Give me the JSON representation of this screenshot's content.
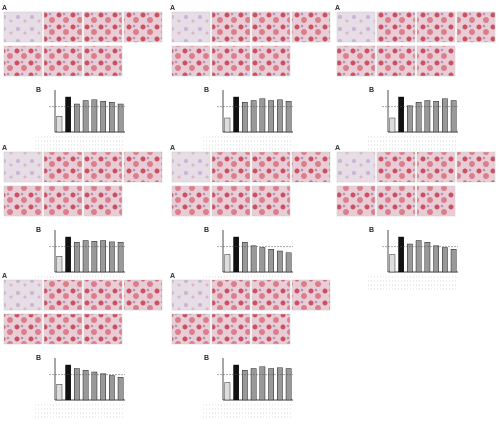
{
  "panels": [
    {
      "label": "A",
      "chart_label": "B",
      "chart": {
        "ylim": [
          0,
          1.2
        ],
        "values": [
          0.45,
          1.0,
          0.8,
          0.9,
          0.92,
          0.88,
          0.85,
          0.8
        ],
        "colors": [
          "#ddd",
          "#111",
          "#999",
          "#999",
          "#999",
          "#999",
          "#999",
          "#999"
        ]
      }
    },
    {
      "label": "A",
      "chart_label": "B",
      "chart": {
        "ylim": [
          0,
          1.2
        ],
        "values": [
          0.4,
          1.0,
          0.85,
          0.9,
          0.95,
          0.9,
          0.92,
          0.88
        ],
        "colors": [
          "#ddd",
          "#111",
          "#999",
          "#999",
          "#999",
          "#999",
          "#999",
          "#999"
        ]
      }
    },
    {
      "label": "A",
      "chart_label": "B",
      "chart": {
        "ylim": [
          0,
          1.2
        ],
        "values": [
          0.4,
          1.0,
          0.75,
          0.85,
          0.9,
          0.88,
          0.95,
          0.9
        ],
        "colors": [
          "#ddd",
          "#111",
          "#999",
          "#999",
          "#999",
          "#999",
          "#999",
          "#999"
        ]
      }
    },
    {
      "label": "A",
      "chart_label": "B",
      "chart": {
        "ylim": [
          0,
          1.2
        ],
        "values": [
          0.45,
          1.0,
          0.85,
          0.9,
          0.88,
          0.9,
          0.86,
          0.85
        ],
        "colors": [
          "#ddd",
          "#111",
          "#999",
          "#999",
          "#999",
          "#999",
          "#999",
          "#999"
        ]
      }
    },
    {
      "label": "A",
      "chart_label": "B",
      "chart": {
        "ylim": [
          0,
          1.2
        ],
        "values": [
          0.5,
          1.0,
          0.85,
          0.75,
          0.7,
          0.65,
          0.6,
          0.55
        ],
        "colors": [
          "#ddd",
          "#111",
          "#999",
          "#999",
          "#999",
          "#999",
          "#999",
          "#999"
        ]
      }
    },
    {
      "label": "A",
      "chart_label": "B",
      "chart": {
        "ylim": [
          0,
          1.2
        ],
        "values": [
          0.5,
          1.0,
          0.8,
          0.9,
          0.85,
          0.75,
          0.7,
          0.65
        ],
        "colors": [
          "#ddd",
          "#111",
          "#999",
          "#999",
          "#999",
          "#999",
          "#999",
          "#999"
        ]
      }
    },
    {
      "label": "A",
      "chart_label": "B",
      "chart": {
        "ylim": [
          0,
          1.2
        ],
        "values": [
          0.45,
          1.0,
          0.9,
          0.85,
          0.8,
          0.75,
          0.7,
          0.65
        ],
        "colors": [
          "#ddd",
          "#111",
          "#999",
          "#999",
          "#999",
          "#999",
          "#999",
          "#999"
        ]
      }
    },
    {
      "label": "A",
      "chart_label": "B",
      "chart": {
        "ylim": [
          0,
          1.2
        ],
        "values": [
          0.5,
          1.0,
          0.85,
          0.9,
          0.95,
          0.9,
          0.92,
          0.9
        ],
        "colors": [
          "#ddd",
          "#111",
          "#999",
          "#999",
          "#999",
          "#999",
          "#999",
          "#999"
        ]
      }
    }
  ]
}
